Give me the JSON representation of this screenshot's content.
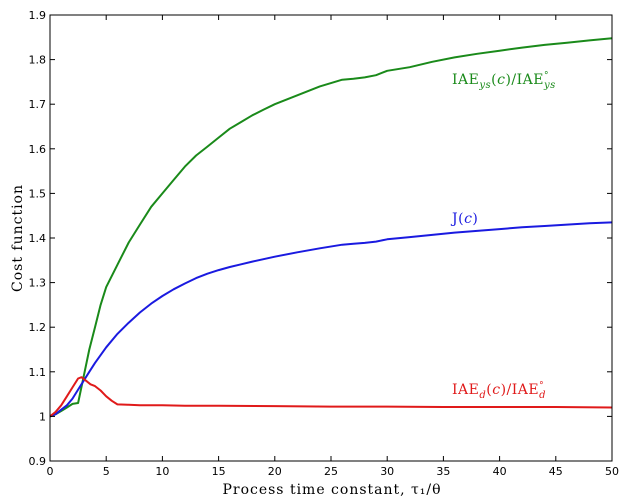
{
  "chart_data": {
    "type": "line",
    "title": "",
    "xlabel": "Process time constant, τ₁/θ",
    "ylabel": "Cost function",
    "xlim": [
      0,
      50
    ],
    "ylim": [
      0.9,
      1.9
    ],
    "xticks": [
      0,
      5,
      10,
      15,
      20,
      25,
      30,
      35,
      40,
      45,
      50
    ],
    "yticks": [
      0.9,
      1,
      1.1,
      1.2,
      1.3,
      1.4,
      1.5,
      1.6,
      1.7,
      1.8,
      1.9
    ],
    "grid": false,
    "series": [
      {
        "name": "IAE_ys(c)/IAE°_ys",
        "color": "#1a8a1a",
        "x": [
          0,
          0.5,
          1,
          1.5,
          2,
          2.5,
          3,
          3.5,
          4,
          4.5,
          5,
          6,
          7,
          8,
          9,
          10,
          11,
          12,
          13,
          14,
          15,
          16,
          17,
          18,
          19,
          20,
          22,
          24,
          26,
          27,
          28,
          29,
          30,
          32,
          34,
          36,
          38,
          40,
          42,
          44,
          46,
          48,
          50
        ],
        "y": [
          1.0,
          1.005,
          1.012,
          1.02,
          1.028,
          1.03,
          1.09,
          1.15,
          1.2,
          1.25,
          1.29,
          1.34,
          1.39,
          1.43,
          1.47,
          1.5,
          1.53,
          1.56,
          1.585,
          1.605,
          1.625,
          1.645,
          1.66,
          1.675,
          1.688,
          1.7,
          1.72,
          1.74,
          1.755,
          1.757,
          1.76,
          1.765,
          1.775,
          1.783,
          1.795,
          1.805,
          1.813,
          1.82,
          1.827,
          1.833,
          1.838,
          1.843,
          1.848
        ]
      },
      {
        "name": "J(c)",
        "color": "#1a1ae0",
        "x": [
          0,
          0.5,
          1,
          1.5,
          2,
          2.5,
          3,
          3.5,
          4,
          5,
          6,
          7,
          8,
          9,
          10,
          11,
          12,
          13,
          14,
          15,
          16,
          17,
          18,
          20,
          22,
          24,
          26,
          27,
          28,
          29,
          30,
          32,
          34,
          36,
          38,
          40,
          42,
          44,
          46,
          48,
          50
        ],
        "y": [
          1.0,
          1.005,
          1.015,
          1.025,
          1.04,
          1.06,
          1.08,
          1.1,
          1.12,
          1.155,
          1.185,
          1.21,
          1.233,
          1.253,
          1.27,
          1.285,
          1.298,
          1.31,
          1.32,
          1.328,
          1.335,
          1.341,
          1.347,
          1.358,
          1.368,
          1.377,
          1.385,
          1.387,
          1.389,
          1.392,
          1.397,
          1.402,
          1.407,
          1.412,
          1.416,
          1.42,
          1.424,
          1.427,
          1.43,
          1.433,
          1.435
        ]
      },
      {
        "name": "IAE_d(c)/IAE°_d",
        "color": "#e01a1a",
        "x": [
          0,
          0.5,
          1,
          1.5,
          2,
          2.5,
          2.8,
          3.2,
          3.6,
          4,
          4.5,
          5,
          5.5,
          6,
          7,
          8,
          10,
          12,
          15,
          20,
          25,
          30,
          35,
          40,
          45,
          50
        ],
        "y": [
          1.0,
          1.01,
          1.025,
          1.045,
          1.065,
          1.085,
          1.088,
          1.08,
          1.072,
          1.068,
          1.058,
          1.045,
          1.035,
          1.027,
          1.026,
          1.025,
          1.025,
          1.024,
          1.024,
          1.023,
          1.022,
          1.022,
          1.021,
          1.021,
          1.021,
          1.02
        ]
      }
    ]
  }
}
